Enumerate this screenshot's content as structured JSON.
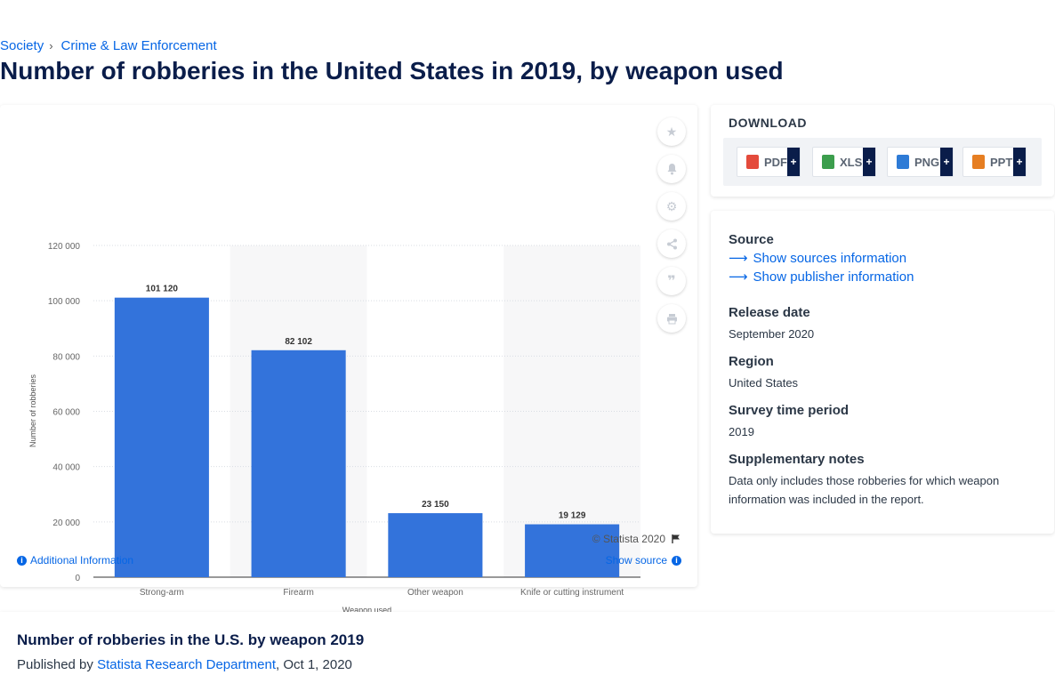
{
  "breadcrumb": {
    "items": [
      "Society",
      "Crime & Law Enforcement"
    ],
    "separator": "›"
  },
  "page": {
    "title": "Number of robberies in the United States in 2019, by weapon used"
  },
  "chart_data": {
    "type": "bar",
    "categories": [
      "Strong-arm",
      "Firearm",
      "Other weapon",
      "Knife or cutting instrument"
    ],
    "values": [
      101120,
      82102,
      23150,
      19129
    ],
    "value_labels": [
      "101 120",
      "82 102",
      "23 150",
      "19 129"
    ],
    "xlabel": "Weapon used",
    "ylabel": "Number of robberies",
    "ylim": [
      0,
      120000
    ],
    "yticks": [
      "0",
      "20 000",
      "40 000",
      "60 000",
      "80 000",
      "100 000",
      "120 000"
    ],
    "grid": true,
    "bar_color": "#3373db"
  },
  "chart_footer": {
    "copyright": "© Statista 2020",
    "additional_info": "Additional Information",
    "show_source": "Show source"
  },
  "tools": [
    "star-icon",
    "bell-icon",
    "gear-icon",
    "share-icon",
    "quote-icon",
    "print-icon"
  ],
  "download": {
    "title": "DOWNLOAD",
    "buttons": [
      {
        "label": "PDF",
        "color": "#e44b3c"
      },
      {
        "label": "XLS",
        "color": "#3c9e4d"
      },
      {
        "label": "PNG",
        "color": "#2e7bd6"
      },
      {
        "label": "PPT",
        "color": "#e67e22"
      }
    ],
    "plus": "+"
  },
  "source": {
    "heading": "Source",
    "links": [
      "Show sources information",
      "Show publisher information"
    ],
    "release_heading": "Release date",
    "release_value": "September 2020",
    "region_heading": "Region",
    "region_value": "United States",
    "period_heading": "Survey time period",
    "period_value": "2019",
    "notes_heading": "Supplementary notes",
    "notes_value": "Data only includes those robberies for which weapon information was included in the report."
  },
  "bottom": {
    "title": "Number of robberies in the U.S. by weapon 2019",
    "published_by": "Published by",
    "publisher": "Statista Research Department",
    "date": ", Oct 1, 2020"
  },
  "colors": {
    "accent": "#0666e5",
    "title": "#0a1d4a"
  }
}
